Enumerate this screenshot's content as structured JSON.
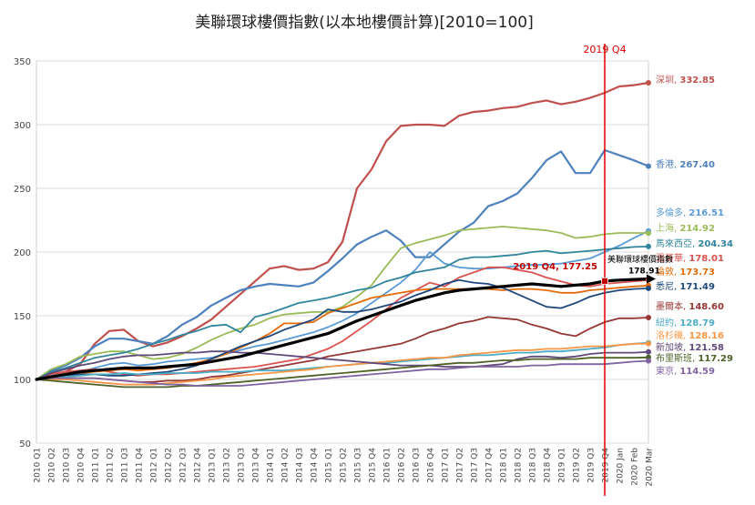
{
  "chart_data": {
    "type": "line",
    "title": "美聯環球樓價指數(以本地樓價計算)[2010=100]",
    "xlabel": "",
    "ylabel": "",
    "ylim": [
      50,
      350
    ],
    "yticks": [
      50,
      100,
      150,
      200,
      250,
      300,
      350
    ],
    "grid": "horizontal",
    "x": [
      "2010 Q1",
      "2010 Q2",
      "2010 Q3",
      "2010 Q4",
      "2011 Q1",
      "2011 Q2",
      "2011 Q3",
      "2011 Q4",
      "2012 Q1",
      "2012 Q2",
      "2012 Q3",
      "2012 Q4",
      "2013 Q1",
      "2013 Q2",
      "2013 Q3",
      "2013 Q4",
      "2014 Q1",
      "2014 Q2",
      "2014 Q3",
      "2014 Q4",
      "2015 Q1",
      "2015 Q2",
      "2015 Q3",
      "2015 Q4",
      "2016 Q1",
      "2016 Q2",
      "2016 Q3",
      "2016 Q4",
      "2017 Q1",
      "2017 Q2",
      "2017 Q3",
      "2017 Q4",
      "2018 Q1",
      "2018 Q2",
      "2018 Q3",
      "2018 Q4",
      "2019 Q1",
      "2019 Q2",
      "2019 Q3",
      "2019 Q4",
      "2020 Jan",
      "2020 Feb",
      "2020 Mar"
    ],
    "marker_line": {
      "x": "2019 Q4",
      "label": "2019 Q4",
      "color": "#e00000"
    },
    "index_annotation": {
      "label": "2019 Q4, 177.25",
      "name_label": "美聯環球樓價指數",
      "end_label": "178.91"
    },
    "series": [
      {
        "name": "深圳",
        "end_label": "332.85",
        "color": "#c0504d",
        "width": 2.2,
        "values": [
          100,
          104,
          106,
          112,
          128,
          138,
          139,
          130,
          126,
          129,
          134,
          140,
          147,
          157,
          167,
          177,
          187,
          189,
          186,
          187,
          192,
          208,
          250,
          265,
          287,
          299,
          300,
          300,
          299,
          307,
          310,
          311,
          313,
          314,
          317,
          319,
          316,
          318,
          321,
          325,
          330,
          331,
          332.85
        ]
      },
      {
        "name": "香港",
        "end_label": "267.40",
        "color": "#4f81bd",
        "width": 2.2,
        "values": [
          100,
          107,
          111,
          117,
          126,
          132,
          132,
          130,
          128,
          134,
          143,
          149,
          158,
          164,
          170,
          173,
          175,
          174,
          173,
          176,
          185,
          195,
          206,
          212,
          217,
          209,
          196,
          196,
          206,
          216,
          223,
          236,
          240,
          246,
          258,
          272,
          279,
          262,
          262,
          280,
          276,
          272,
          267.4
        ]
      },
      {
        "name": "多倫多",
        "end_label": "216.51",
        "color": "#5b9bd5",
        "width": 1.8,
        "values": [
          100,
          103,
          104,
          106,
          109,
          112,
          113,
          111,
          112,
          114,
          115,
          116,
          117,
          120,
          123,
          126,
          128,
          131,
          134,
          137,
          141,
          146,
          152,
          160,
          168,
          176,
          186,
          200,
          191,
          188,
          187,
          187,
          188,
          189,
          190,
          190,
          191,
          193,
          195,
          200,
          205,
          211,
          216.51
        ]
      },
      {
        "name": "上海",
        "end_label": "214.92",
        "color": "#9bbb59",
        "width": 1.8,
        "values": [
          100,
          108,
          112,
          118,
          120,
          122,
          122,
          119,
          116,
          117,
          120,
          125,
          131,
          136,
          140,
          143,
          148,
          151,
          152,
          153,
          153,
          157,
          165,
          174,
          189,
          203,
          207,
          210,
          213,
          217,
          218,
          219,
          220,
          219,
          218,
          217,
          215,
          211,
          212,
          214,
          215,
          215,
          214.92
        ]
      },
      {
        "name": "馬來西亞",
        "end_label": "204.34",
        "color": "#31859c",
        "width": 1.8,
        "values": [
          100,
          106,
          109,
          113,
          117,
          119,
          121,
          124,
          128,
          131,
          135,
          138,
          142,
          143,
          137,
          149,
          152,
          156,
          160,
          162,
          164,
          167,
          170,
          172,
          177,
          180,
          184,
          186,
          188,
          194,
          196,
          196,
          197,
          198,
          200,
          201,
          199,
          200,
          201,
          202,
          203,
          204,
          204.34
        ]
      },
      {
        "name": "溫哥華",
        "end_label": "178.01",
        "color": "#d9534f",
        "width": 1.8,
        "values": [
          100,
          104,
          106,
          107,
          108,
          106,
          104,
          103,
          104,
          104,
          105,
          106,
          107,
          108,
          109,
          110,
          112,
          114,
          116,
          120,
          124,
          130,
          138,
          146,
          155,
          164,
          170,
          176,
          173,
          180,
          184,
          188,
          188,
          186,
          184,
          180,
          177,
          174,
          173,
          175,
          176,
          177,
          178.01
        ]
      },
      {
        "name": "倫敦",
        "end_label": "173.73",
        "color": "#e36c09",
        "width": 1.8,
        "values": [
          100,
          102,
          104,
          105,
          106,
          107,
          108,
          107,
          108,
          109,
          111,
          113,
          116,
          120,
          125,
          130,
          136,
          144,
          144,
          145,
          152,
          156,
          160,
          164,
          166,
          168,
          170,
          171,
          171,
          171,
          171,
          171,
          170,
          171,
          171,
          170,
          168,
          168,
          170,
          171,
          172,
          173,
          173.73
        ]
      },
      {
        "name": "悉尼",
        "end_label": "171.49",
        "color": "#1f497d",
        "width": 1.8,
        "values": [
          100,
          102,
          103,
          104,
          104,
          103,
          103,
          104,
          105,
          106,
          108,
          111,
          116,
          121,
          126,
          130,
          134,
          139,
          143,
          147,
          155,
          153,
          153,
          155,
          158,
          161,
          166,
          170,
          175,
          178,
          176,
          175,
          172,
          167,
          162,
          157,
          156,
          160,
          165,
          168,
          170,
          171,
          171.49
        ]
      },
      {
        "name": "墨爾本",
        "end_label": "148.60",
        "color": "#953735",
        "width": 1.8,
        "values": [
          100,
          101,
          101,
          101,
          101,
          100,
          99,
          98,
          98,
          99,
          99,
          100,
          102,
          103,
          105,
          107,
          109,
          111,
          113,
          115,
          118,
          120,
          122,
          124,
          126,
          128,
          132,
          137,
          140,
          144,
          146,
          149,
          148,
          147,
          143,
          140,
          136,
          134,
          140,
          145,
          148,
          148,
          148.6
        ]
      },
      {
        "name": "紐約",
        "end_label": "128.79",
        "color": "#4bacc6",
        "width": 1.8,
        "values": [
          100,
          101,
          102,
          103,
          104,
          104,
          105,
          104,
          104,
          105,
          105,
          105,
          106,
          106,
          106,
          107,
          107,
          107,
          108,
          109,
          110,
          111,
          112,
          113,
          113,
          114,
          115,
          116,
          117,
          118,
          119,
          119,
          120,
          121,
          121,
          122,
          122,
          123,
          124,
          125,
          127,
          128,
          128.79
        ]
      },
      {
        "name": "洛杉磯",
        "end_label": "128.16",
        "color": "#f79646",
        "width": 1.8,
        "values": [
          100,
          100,
          100,
          99,
          98,
          97,
          96,
          96,
          96,
          97,
          98,
          99,
          100,
          102,
          103,
          104,
          105,
          106,
          107,
          108,
          110,
          111,
          112,
          113,
          114,
          115,
          116,
          117,
          117,
          119,
          120,
          121,
          122,
          123,
          123,
          124,
          124,
          125,
          126,
          126,
          127,
          128,
          128.16
        ]
      },
      {
        "name": "新加坡",
        "end_label": "121.58",
        "color": "#604a7b",
        "width": 1.8,
        "values": [
          100,
          105,
          108,
          111,
          113,
          116,
          118,
          119,
          119,
          120,
          121,
          121,
          122,
          122,
          121,
          121,
          120,
          119,
          118,
          117,
          116,
          115,
          114,
          113,
          112,
          111,
          111,
          111,
          110,
          110,
          110,
          111,
          112,
          116,
          118,
          118,
          117,
          118,
          120,
          121,
          121,
          121,
          121.58
        ]
      },
      {
        "name": "布里斯班",
        "end_label": "117.29",
        "color": "#4f6228",
        "width": 1.8,
        "values": [
          100,
          99,
          98,
          97,
          96,
          95,
          94,
          94,
          94,
          94,
          95,
          95,
          96,
          97,
          98,
          99,
          100,
          101,
          102,
          103,
          104,
          105,
          106,
          107,
          108,
          109,
          110,
          111,
          112,
          113,
          113,
          114,
          115,
          115,
          116,
          116,
          116,
          116,
          117,
          117,
          117,
          117,
          117.29
        ]
      },
      {
        "name": "東京",
        "end_label": "114.59",
        "color": "#8064a2",
        "width": 1.8,
        "values": [
          100,
          101,
          101,
          101,
          101,
          100,
          99,
          98,
          97,
          96,
          96,
          95,
          95,
          95,
          95,
          96,
          97,
          98,
          99,
          100,
          101,
          102,
          103,
          104,
          105,
          106,
          107,
          108,
          108,
          109,
          110,
          110,
          110,
          110,
          111,
          111,
          112,
          112,
          112,
          112,
          113,
          114,
          114.59
        ]
      },
      {
        "name": "美聯環球樓價指數",
        "end_label": "",
        "color": "#000000",
        "width": 3.2,
        "values": [
          100,
          102,
          104,
          106,
          107,
          108,
          109,
          109,
          109,
          110,
          111,
          112,
          114,
          116,
          118,
          121,
          124,
          127,
          130,
          133,
          136,
          141,
          146,
          150,
          154,
          158,
          162,
          165,
          168,
          170,
          171,
          172,
          173,
          174,
          175,
          174,
          173,
          174,
          175,
          177.25,
          178,
          178.5,
          178.91
        ]
      }
    ]
  }
}
